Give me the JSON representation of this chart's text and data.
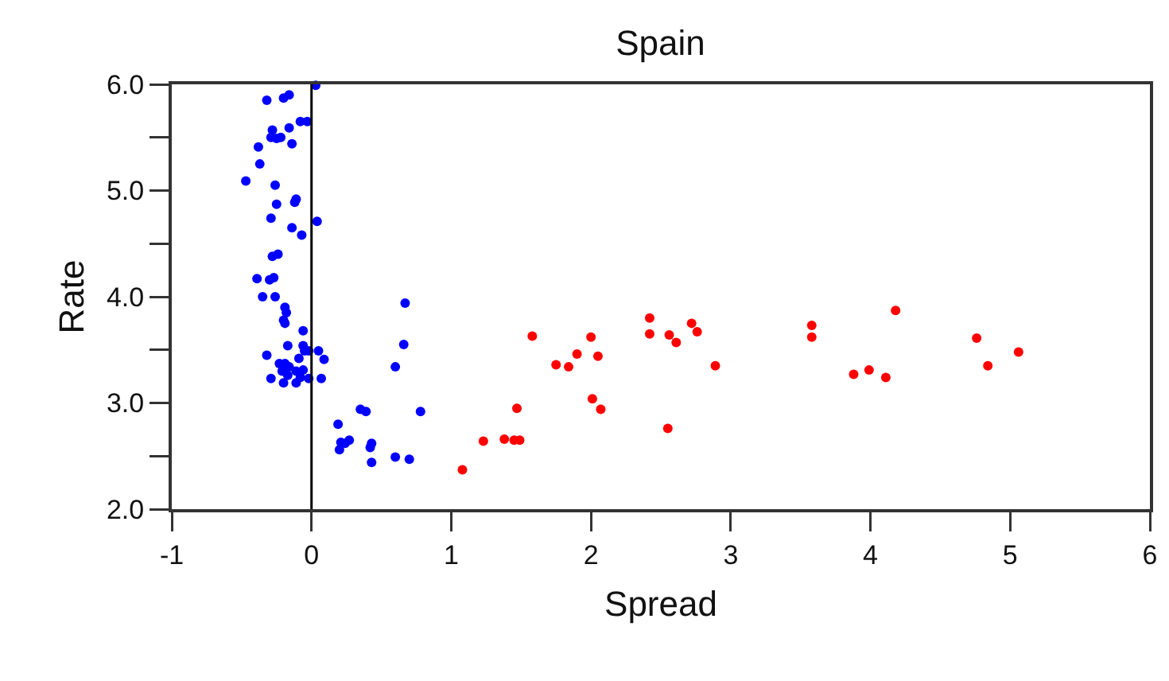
{
  "chart_data": {
    "type": "scatter",
    "title": "Spain",
    "xlabel": "Spread",
    "ylabel": "Rate",
    "xlim": [
      -1,
      6
    ],
    "xticks": [
      -1,
      0,
      1,
      2,
      3,
      4,
      5,
      6
    ],
    "ylim": [
      2,
      6
    ],
    "yticks": [
      {
        "value": 2,
        "label": "2.0"
      },
      {
        "value": 2.5,
        "label": null
      },
      {
        "value": 3,
        "label": "3.0"
      },
      {
        "value": 3.5,
        "label": null
      },
      {
        "value": 4,
        "label": "4.0"
      },
      {
        "value": 4.5,
        "label": null
      },
      {
        "value": 5,
        "label": "5.0"
      },
      {
        "value": 5.5,
        "label": null
      },
      {
        "value": 6,
        "label": "6.0"
      }
    ],
    "grid": false,
    "marker": "circle",
    "ref_lines": [
      {
        "axis": "x",
        "value": 0,
        "color": "#000000"
      }
    ],
    "series": [
      {
        "color": "#0000ff",
        "x": [
          0.03,
          -0.32,
          -0.2,
          -0.16,
          -0.08,
          -0.03,
          -0.16,
          -0.28,
          -0.29,
          -0.25,
          -0.22,
          -0.14,
          -0.38,
          -0.37,
          -0.47,
          -0.26,
          -0.25,
          -0.12,
          -0.11,
          -0.29,
          0.04,
          -0.14,
          -0.07,
          -0.28,
          -0.24,
          -0.39,
          -0.3,
          -0.27,
          -0.35,
          -0.26,
          -0.19,
          -0.18,
          -0.2,
          -0.19,
          -0.06,
          -0.17,
          -0.06,
          -0.32,
          -0.05,
          -0.02,
          0.05,
          0.09,
          -0.09,
          -0.23,
          -0.19,
          -0.16,
          -0.21,
          -0.11,
          -0.06,
          -0.29,
          -0.2,
          -0.11,
          -0.02,
          0.07,
          -0.17,
          -0.08,
          0.67,
          0.66,
          0.6,
          0.78,
          0.35,
          0.39,
          0.19,
          0.21,
          0.27,
          0.24,
          0.2,
          0.43,
          0.42,
          0.43,
          0.6,
          0.7
        ],
        "values": [
          5.99,
          5.85,
          5.87,
          5.9,
          5.65,
          5.65,
          5.59,
          5.57,
          5.5,
          5.49,
          5.5,
          5.44,
          5.41,
          5.25,
          5.09,
          5.05,
          4.87,
          4.89,
          4.92,
          4.74,
          4.71,
          4.65,
          4.58,
          4.38,
          4.4,
          4.17,
          4.16,
          4.18,
          4,
          4,
          3.9,
          3.85,
          3.78,
          3.75,
          3.68,
          3.54,
          3.54,
          3.45,
          3.49,
          3.49,
          3.49,
          3.41,
          3.42,
          3.37,
          3.37,
          3.34,
          3.3,
          3.3,
          3.31,
          3.23,
          3.19,
          3.19,
          3.23,
          3.23,
          3.26,
          3.24,
          3.94,
          3.55,
          3.34,
          2.92,
          2.94,
          2.92,
          2.8,
          2.63,
          2.65,
          2.62,
          2.56,
          2.62,
          2.58,
          2.44,
          2.49,
          2.47
        ]
      },
      {
        "color": "#ff0000",
        "x": [
          1.08,
          1.23,
          1.38,
          1.45,
          1.49,
          1.47,
          1.58,
          1.75,
          1.84,
          1.9,
          2,
          2.05,
          2.01,
          2.07,
          2.42,
          2.42,
          2.56,
          2.61,
          2.55,
          2.72,
          2.76,
          2.89,
          3.58,
          3.58,
          3.88,
          3.99,
          4.11,
          4.18,
          4.76,
          4.84,
          5.06
        ],
        "values": [
          2.37,
          2.64,
          2.66,
          2.65,
          2.65,
          2.95,
          3.63,
          3.36,
          3.34,
          3.46,
          3.62,
          3.44,
          3.04,
          2.94,
          3.8,
          3.65,
          3.64,
          3.57,
          2.76,
          3.75,
          3.67,
          3.35,
          3.73,
          3.62,
          3.27,
          3.31,
          3.24,
          3.87,
          3.61,
          3.35,
          3.48
        ]
      }
    ]
  }
}
